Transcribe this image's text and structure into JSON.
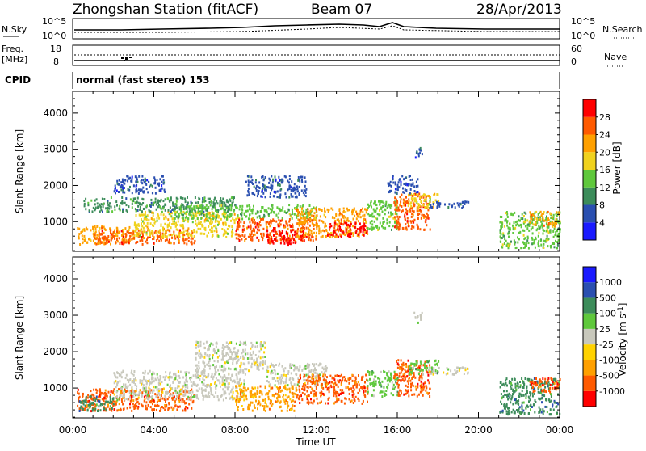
{
  "header": {
    "station": "Zhongshan Station (fitACF)",
    "beam": "Beam 07",
    "date": "28/Apr/2013"
  },
  "strip_panels": {
    "nsky_label": "N.Sky",
    "nsky_top": "10^5",
    "nsky_bottom": "10^0",
    "nsearch_label": "N.Search",
    "nsearch_top": "10^5",
    "nsearch_bottom": "10^0",
    "freq_label": "Freq.",
    "freq_unit": "[MHz]",
    "freq_top": "18",
    "freq_bottom": "8",
    "nave_label": "Nave",
    "nave_top": "60",
    "nave_bottom": "0",
    "cpid_label": "CPID",
    "cpid_value": "normal (fast stereo) 153"
  },
  "colors": {
    "power": [
      "#1a1aff",
      "#2a4fb0",
      "#3c8c5a",
      "#5fc83c",
      "#f0d21e",
      "#ffa000",
      "#ff5a00",
      "#ff0000"
    ],
    "velocity": [
      "#ff0000",
      "#ff5a00",
      "#ffa000",
      "#ffd200",
      "#c8c8bc",
      "#5fc83c",
      "#3c8c5a",
      "#2a4fb0",
      "#1a1aff"
    ]
  },
  "chart_data": [
    {
      "type": "heatmap",
      "title": "",
      "xlabel": "",
      "ylabel": "Slant Range [km]",
      "xlim": [
        "00:00",
        "00:00"
      ],
      "x_ticks": [
        "00:00",
        "04:00",
        "08:00",
        "12:00",
        "16:00",
        "20:00",
        "00:00"
      ],
      "ylim": [
        180,
        4600
      ],
      "y_ticks": [
        1000,
        2000,
        3000,
        4000
      ],
      "colorbar": {
        "label": "Power [dB]",
        "ticks": [
          "4",
          "8",
          "12",
          "16",
          "20",
          "24",
          "28"
        ],
        "range": [
          0,
          32
        ]
      },
      "blobs": [
        {
          "t0": 0.2,
          "t1": 3.0,
          "r0": 400,
          "r1": 900,
          "v": 21
        },
        {
          "t0": 1.0,
          "t1": 6.0,
          "r0": 400,
          "r1": 800,
          "v": 27
        },
        {
          "t0": 3.0,
          "t1": 8.0,
          "r0": 600,
          "r1": 1300,
          "v": 17
        },
        {
          "t0": 0.5,
          "t1": 8.0,
          "r0": 1300,
          "r1": 1700,
          "v": 8
        },
        {
          "t0": 5.0,
          "t1": 12.0,
          "r0": 1100,
          "r1": 1500,
          "v": 12
        },
        {
          "t0": 8.0,
          "t1": 12.0,
          "r0": 500,
          "r1": 1100,
          "v": 24
        },
        {
          "t0": 9.5,
          "t1": 11.5,
          "r0": 400,
          "r1": 800,
          "v": 29
        },
        {
          "t0": 11.0,
          "t1": 14.5,
          "r0": 600,
          "r1": 1400,
          "v": 22
        },
        {
          "t0": 12.5,
          "t1": 14.5,
          "r0": 600,
          "r1": 1000,
          "v": 28
        },
        {
          "t0": 14.5,
          "t1": 16.0,
          "r0": 800,
          "r1": 1600,
          "v": 13
        },
        {
          "t0": 15.8,
          "t1": 17.6,
          "r0": 800,
          "r1": 1800,
          "v": 26
        },
        {
          "t0": 16.5,
          "t1": 18.0,
          "r0": 1400,
          "r1": 1800,
          "v": 16
        },
        {
          "t0": 17.5,
          "t1": 19.5,
          "r0": 1400,
          "r1": 1600,
          "v": 7
        },
        {
          "t0": 2.0,
          "t1": 4.5,
          "r0": 1800,
          "r1": 2300,
          "v": 6
        },
        {
          "t0": 8.5,
          "t1": 11.5,
          "r0": 1700,
          "r1": 2300,
          "v": 7
        },
        {
          "t0": 15.5,
          "t1": 17.0,
          "r0": 1800,
          "r1": 2300,
          "v": 7
        },
        {
          "t0": 16.8,
          "t1": 17.2,
          "r0": 2800,
          "r1": 3100,
          "v": 6
        },
        {
          "t0": 21.0,
          "t1": 24.0,
          "r0": 300,
          "r1": 1300,
          "v": 13
        },
        {
          "t0": 22.5,
          "t1": 24.0,
          "r0": 900,
          "r1": 1300,
          "v": 22
        }
      ]
    },
    {
      "type": "heatmap",
      "title": "",
      "xlabel": "Time UT",
      "ylabel": "Slant Range [km]",
      "xlim": [
        "00:00",
        "00:00"
      ],
      "x_ticks": [
        "00:00",
        "04:00",
        "08:00",
        "12:00",
        "16:00",
        "20:00",
        "00:00"
      ],
      "ylim": [
        180,
        4600
      ],
      "y_ticks": [
        1000,
        2000,
        3000,
        4000
      ],
      "colorbar": {
        "label": "Velocity [m s^-1]",
        "ticks": [
          "-1000",
          "-500",
          "-100",
          "-25",
          "25",
          "100",
          "500",
          "1000"
        ]
      },
      "blobs": [
        {
          "t0": 0.2,
          "t1": 6.0,
          "r0": 400,
          "r1": 1000,
          "v": 1
        },
        {
          "t0": 0.3,
          "t1": 2.0,
          "r0": 400,
          "r1": 800,
          "v": 6
        },
        {
          "t0": 2.0,
          "t1": 8.5,
          "r0": 700,
          "r1": 1500,
          "v": 4
        },
        {
          "t0": 6.0,
          "t1": 9.5,
          "r0": 1500,
          "r1": 2300,
          "v": 4
        },
        {
          "t0": 8.0,
          "t1": 11.0,
          "r0": 400,
          "r1": 1100,
          "v": 2
        },
        {
          "t0": 9.5,
          "t1": 12.5,
          "r0": 1100,
          "r1": 1700,
          "v": 4
        },
        {
          "t0": 11.0,
          "t1": 14.5,
          "r0": 600,
          "r1": 1400,
          "v": 1
        },
        {
          "t0": 14.5,
          "t1": 16.0,
          "r0": 800,
          "r1": 1500,
          "v": 5
        },
        {
          "t0": 15.8,
          "t1": 17.6,
          "r0": 800,
          "r1": 1800,
          "v": 1
        },
        {
          "t0": 16.5,
          "t1": 18.0,
          "r0": 1400,
          "r1": 1800,
          "v": 5
        },
        {
          "t0": 17.5,
          "t1": 19.5,
          "r0": 1400,
          "r1": 1600,
          "v": 4
        },
        {
          "t0": 16.8,
          "t1": 17.2,
          "r0": 2800,
          "r1": 3100,
          "v": 4
        },
        {
          "t0": 21.0,
          "t1": 24.0,
          "r0": 300,
          "r1": 1300,
          "v": 6
        },
        {
          "t0": 22.5,
          "t1": 24.0,
          "r0": 900,
          "r1": 1300,
          "v": 1
        }
      ]
    }
  ]
}
